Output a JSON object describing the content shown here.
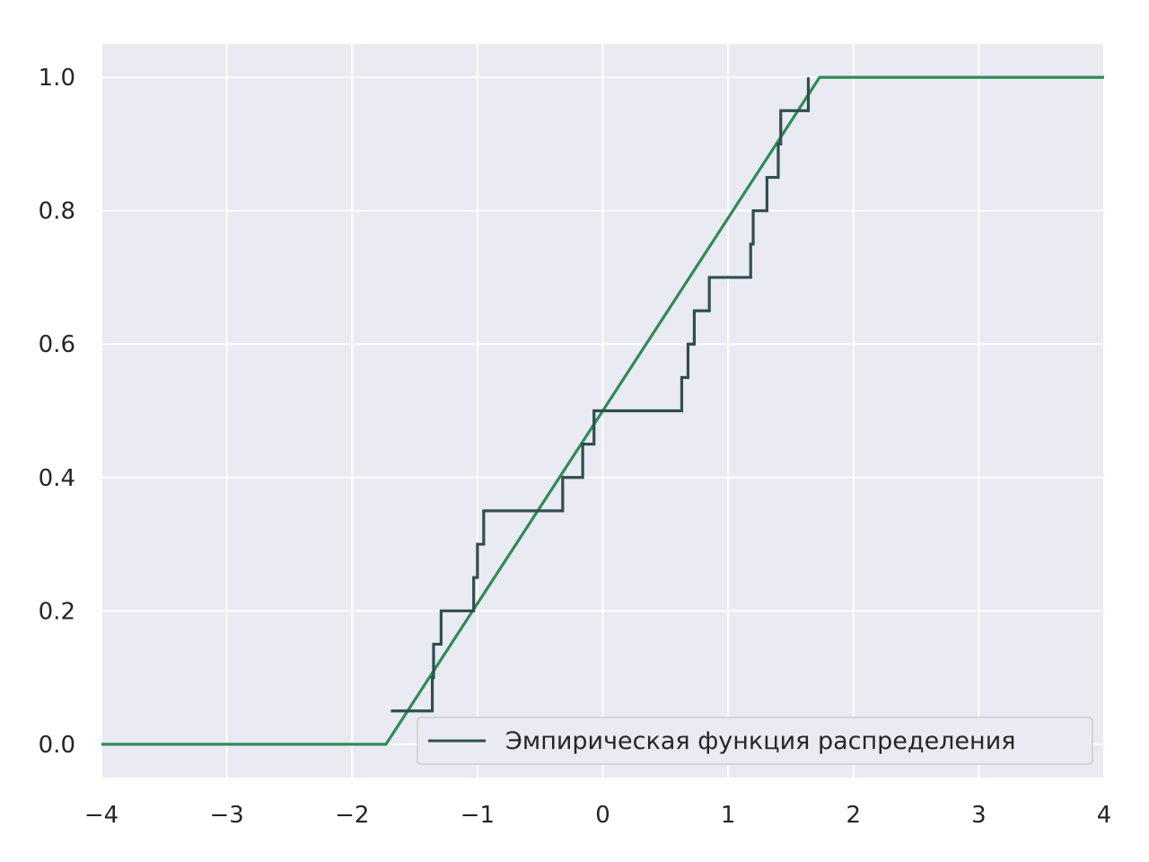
{
  "chart_data": {
    "type": "line",
    "title": "",
    "xlabel": "",
    "ylabel": "",
    "xlim": [
      -4,
      4
    ],
    "ylim": [
      -0.05,
      1.05
    ],
    "grid": true,
    "legend_position": "lower-right",
    "x_ticks": [
      -4,
      -3,
      -2,
      -1,
      0,
      1,
      2,
      3,
      4
    ],
    "x_tick_labels": [
      "−4",
      "−3",
      "−2",
      "−1",
      "0",
      "1",
      "2",
      "3",
      "4"
    ],
    "y_ticks": [
      0.0,
      0.2,
      0.4,
      0.6,
      0.8,
      1.0
    ],
    "y_tick_labels": [
      "0.0",
      "0.2",
      "0.4",
      "0.6",
      "0.8",
      "1.0"
    ],
    "colors": {
      "background": "#eaeaf2",
      "grid": "#ffffff",
      "empirical": "#2f4f4f",
      "theoretical": "#2e8b57"
    },
    "series": [
      {
        "name": "Эмпирическая функция распределения",
        "style": "step",
        "color": "#2f4f4f",
        "x": [
          -1.69,
          -1.36,
          -1.35,
          -1.29,
          -1.03,
          -1.0,
          -0.95,
          -0.32,
          -0.16,
          -0.07,
          0.63,
          0.68,
          0.73,
          0.85,
          1.18,
          1.2,
          1.31,
          1.4,
          1.42,
          1.64
        ],
        "y": [
          0.05,
          0.1,
          0.15,
          0.2,
          0.25,
          0.3,
          0.35,
          0.4,
          0.45,
          0.5,
          0.55,
          0.6,
          0.65,
          0.7,
          0.75,
          0.8,
          0.85,
          0.9,
          0.95,
          1.0
        ]
      },
      {
        "name": "",
        "style": "line",
        "color": "#2e8b57",
        "x": [
          -4,
          -1.73,
          1.73,
          4
        ],
        "y": [
          0,
          0,
          1,
          1
        ]
      }
    ]
  }
}
